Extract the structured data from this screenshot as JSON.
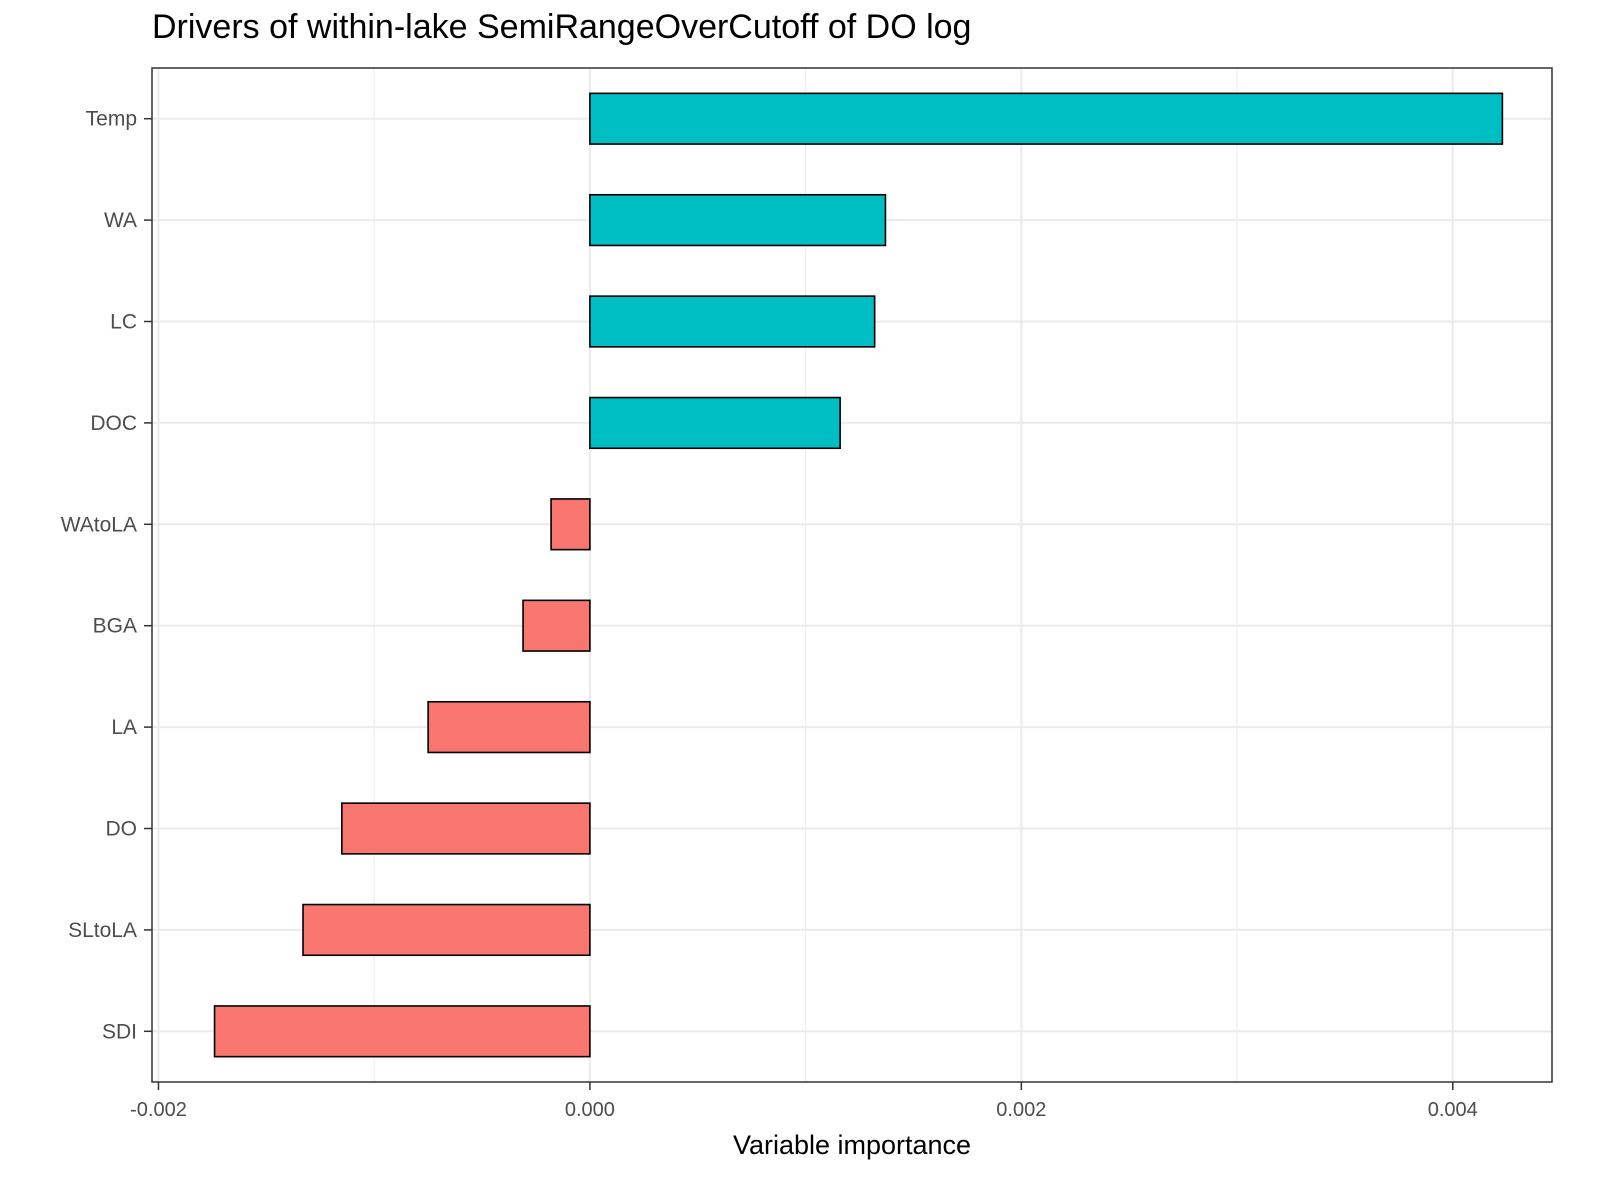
{
  "chart_data": {
    "type": "bar",
    "orientation": "horizontal",
    "title": "Drivers of within-lake SemiRangeOverCutoff of DO log",
    "xlabel": "Variable importance",
    "ylabel": "",
    "categories": [
      "Temp",
      "WA",
      "LC",
      "DOC",
      "WAtoLA",
      "BGA",
      "LA",
      "DO",
      "SLtoLA",
      "SDI"
    ],
    "values": [
      0.00423,
      0.00137,
      0.00132,
      0.00116,
      -0.00018,
      -0.00031,
      -0.00075,
      -0.00115,
      -0.00133,
      -0.00174
    ],
    "xlim": [
      -0.00203,
      0.00446
    ],
    "xticks": [
      -0.002,
      0.0,
      0.002,
      0.004
    ],
    "xtick_labels": [
      "-0.002",
      "0.000",
      "0.002",
      "0.004"
    ],
    "grid": true,
    "legend": "none",
    "colors": {
      "positive": "#00BFC4",
      "negative": "#F8766D",
      "outline": "#000000",
      "grid": "#ebebeb",
      "panel_border": "#333333"
    }
  }
}
